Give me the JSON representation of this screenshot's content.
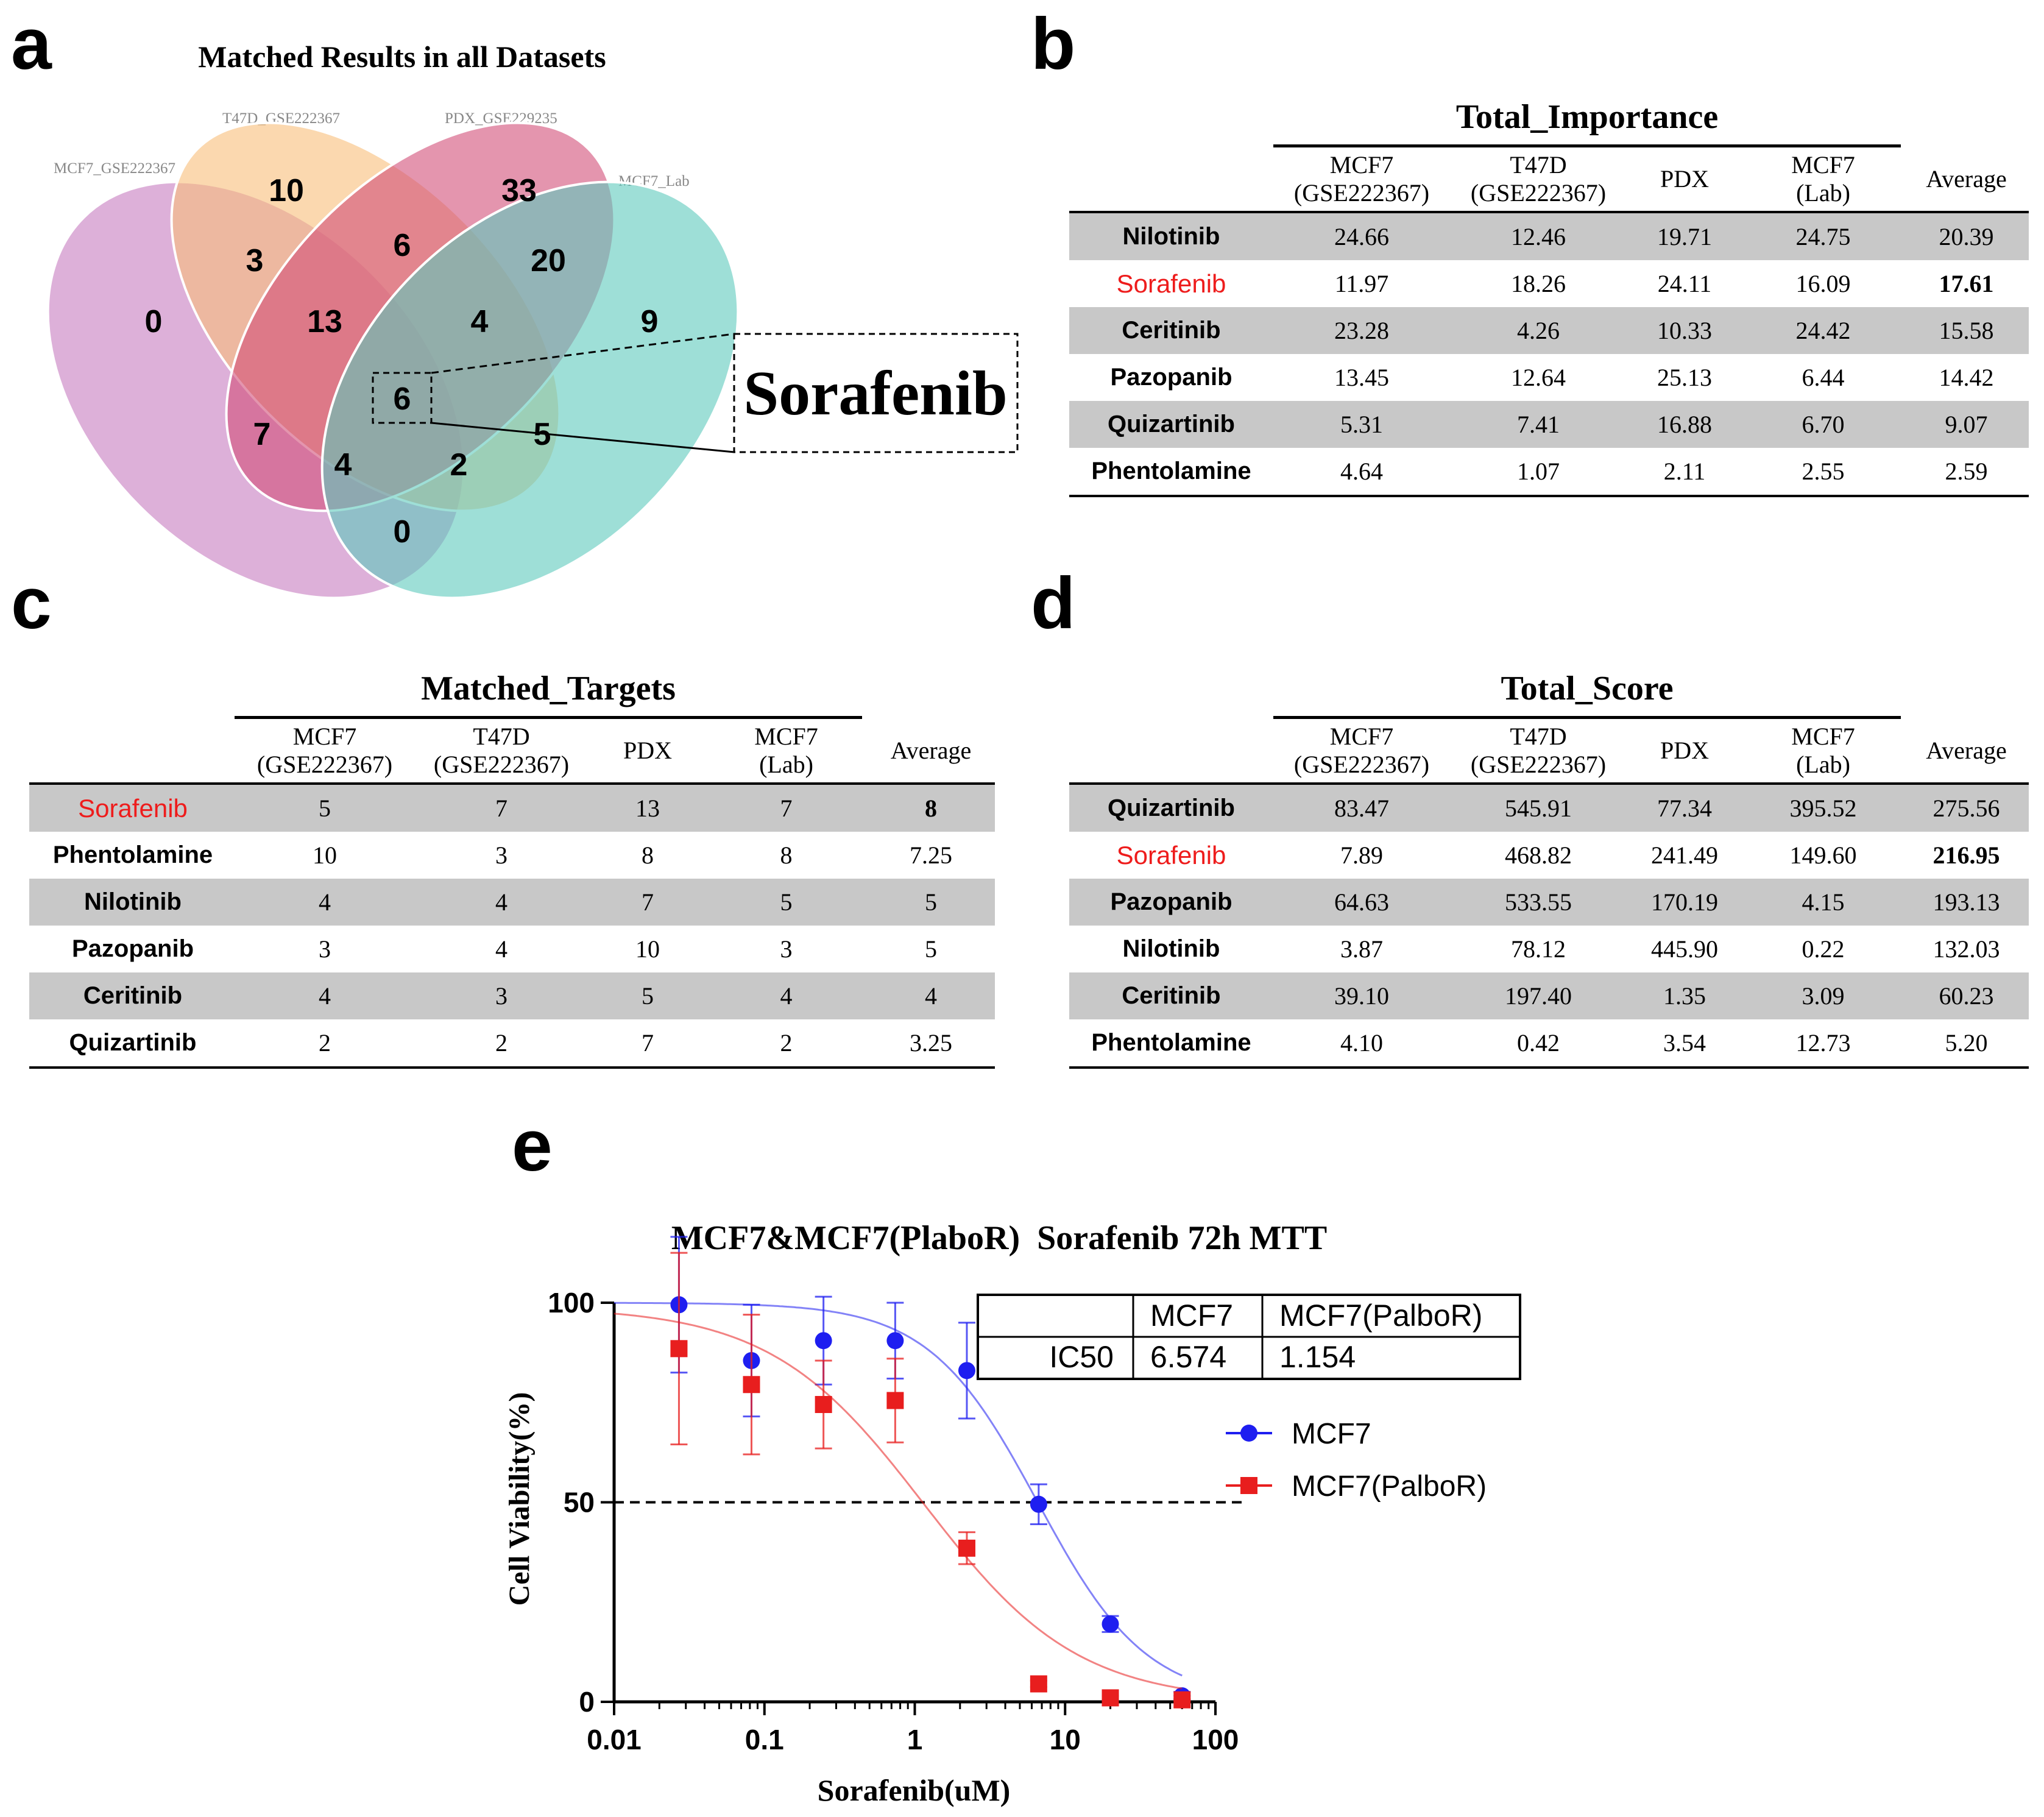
{
  "panels": {
    "a": "a",
    "b": "b",
    "c": "c",
    "d": "d",
    "e": "e"
  },
  "venn": {
    "title": "Matched Results in all Datasets",
    "set_labels": [
      "MCF7_GSE222367",
      "T47D_GSE222367",
      "PDX_GSE229235",
      "MCF7_Lab"
    ],
    "region_counts": {
      "mcf7_only": "0",
      "t47d_only": "10",
      "pdx_only": "33",
      "lab_only": "9",
      "mcf7_t47d": "3",
      "t47d_pdx": "6",
      "pdx_lab": "20",
      "mcf7_t47d_pdx": "13",
      "t47d_pdx_lab": "4",
      "all": "6",
      "mcf7_pdx": "7",
      "t47d_lab": "5",
      "mcf7_pdx_lab": "4",
      "mcf7_t47d_lab": "2",
      "mcf7_lab": "0"
    },
    "callout": "Sorafenib",
    "colors": {
      "mcf7": "#c77bbf",
      "t47d": "#f9be7a",
      "pdx": "#d24f78",
      "lab": "#5ec9bd"
    }
  },
  "headers": {
    "mcf7_a": "MCF7",
    "mcf7_b": "(GSE222367)",
    "t47d_a": "T47D",
    "t47d_b": "(GSE222367)",
    "pdx": "PDX",
    "lab_a": "MCF7",
    "lab_b": "(Lab)",
    "avg": "Average"
  },
  "table_b": {
    "title": "Total_Importance",
    "rows": [
      {
        "drug": "Nilotinib",
        "v": [
          "24.66",
          "12.46",
          "19.71",
          "24.75",
          "20.39"
        ]
      },
      {
        "drug": "Sorafenib",
        "v": [
          "11.97",
          "18.26",
          "24.11",
          "16.09",
          "17.61"
        ]
      },
      {
        "drug": "Ceritinib",
        "v": [
          "23.28",
          "4.26",
          "10.33",
          "24.42",
          "15.58"
        ]
      },
      {
        "drug": "Pazopanib",
        "v": [
          "13.45",
          "12.64",
          "25.13",
          "6.44",
          "14.42"
        ]
      },
      {
        "drug": "Quizartinib",
        "v": [
          "5.31",
          "7.41",
          "16.88",
          "6.70",
          "9.07"
        ]
      },
      {
        "drug": "Phentolamine",
        "v": [
          "4.64",
          "1.07",
          "2.11",
          "2.55",
          "2.59"
        ]
      }
    ]
  },
  "table_c": {
    "title": "Matched_Targets",
    "rows": [
      {
        "drug": "Sorafenib",
        "v": [
          "5",
          "7",
          "13",
          "7",
          "8"
        ]
      },
      {
        "drug": "Phentolamine",
        "v": [
          "10",
          "3",
          "8",
          "8",
          "7.25"
        ]
      },
      {
        "drug": "Nilotinib",
        "v": [
          "4",
          "4",
          "7",
          "5",
          "5"
        ]
      },
      {
        "drug": "Pazopanib",
        "v": [
          "3",
          "4",
          "10",
          "3",
          "5"
        ]
      },
      {
        "drug": "Ceritinib",
        "v": [
          "4",
          "3",
          "5",
          "4",
          "4"
        ]
      },
      {
        "drug": "Quizartinib",
        "v": [
          "2",
          "2",
          "7",
          "2",
          "3.25"
        ]
      }
    ]
  },
  "table_d": {
    "title": "Total_Score",
    "rows": [
      {
        "drug": "Quizartinib",
        "v": [
          "83.47",
          "545.91",
          "77.34",
          "395.52",
          "275.56"
        ]
      },
      {
        "drug": "Sorafenib",
        "v": [
          "7.89",
          "468.82",
          "241.49",
          "149.60",
          "216.95"
        ]
      },
      {
        "drug": "Pazopanib",
        "v": [
          "64.63",
          "533.55",
          "170.19",
          "4.15",
          "193.13"
        ]
      },
      {
        "drug": "Nilotinib",
        "v": [
          "3.87",
          "78.12",
          "445.90",
          "0.22",
          "132.03"
        ]
      },
      {
        "drug": "Ceritinib",
        "v": [
          "39.10",
          "197.40",
          "1.35",
          "3.09",
          "60.23"
        ]
      },
      {
        "drug": "Phentolamine",
        "v": [
          "4.10",
          "0.42",
          "3.54",
          "12.73",
          "5.20"
        ]
      }
    ]
  },
  "highlight_drug": "Sorafenib",
  "chart_data": {
    "type": "scatter",
    "title": "MCF7&MCF7(PlaboR)  Sorafenib 72h MTT",
    "xlabel": "Sorafenib(uM)",
    "ylabel": "Cell Viability(%)",
    "xscale": "log",
    "xlim": [
      0.01,
      100
    ],
    "ylim": [
      0,
      100
    ],
    "x_ticks": [
      0.01,
      0.1,
      1,
      10,
      100
    ],
    "x_tick_labels": [
      "0.01",
      "0.1",
      "1",
      "10",
      "100"
    ],
    "y_ticks": [
      0,
      50,
      100
    ],
    "y_tick_labels": [
      "0",
      "50",
      "100"
    ],
    "reference_line_y": 50,
    "series": [
      {
        "name": "MCF7",
        "color": "#1e1ef0",
        "marker": "circle",
        "x": [
          0.027,
          0.082,
          0.247,
          0.741,
          2.22,
          6.67,
          20,
          60
        ],
        "y": [
          99.5,
          85.5,
          90.5,
          90.5,
          83,
          49.5,
          19.5,
          1.5
        ],
        "err": [
          17,
          14,
          11,
          9.5,
          12,
          5,
          2,
          1
        ],
        "fit_ic50": 6.574,
        "fit_hill": 1.2
      },
      {
        "name": "MCF7(PalboR)",
        "color": "#e81e1e",
        "marker": "square",
        "x": [
          0.027,
          0.082,
          0.247,
          0.741,
          2.22,
          6.67,
          20,
          60
        ],
        "y": [
          88.5,
          79.5,
          74.5,
          75.5,
          38.5,
          4.5,
          1,
          0.5
        ],
        "err": [
          24,
          17.5,
          11,
          10.5,
          4,
          0.8,
          0.5,
          0.3
        ],
        "fit_ic50": 1.154,
        "fit_hill": 0.85,
        "fit_top": 99
      }
    ],
    "legend": [
      "MCF7",
      "MCF7(PalboR)"
    ],
    "legend_position": "right",
    "ic50_table": {
      "header": [
        "",
        "MCF7",
        "MCF7(PalboR)"
      ],
      "row": [
        "IC50",
        "6.574",
        "1.154"
      ]
    }
  }
}
